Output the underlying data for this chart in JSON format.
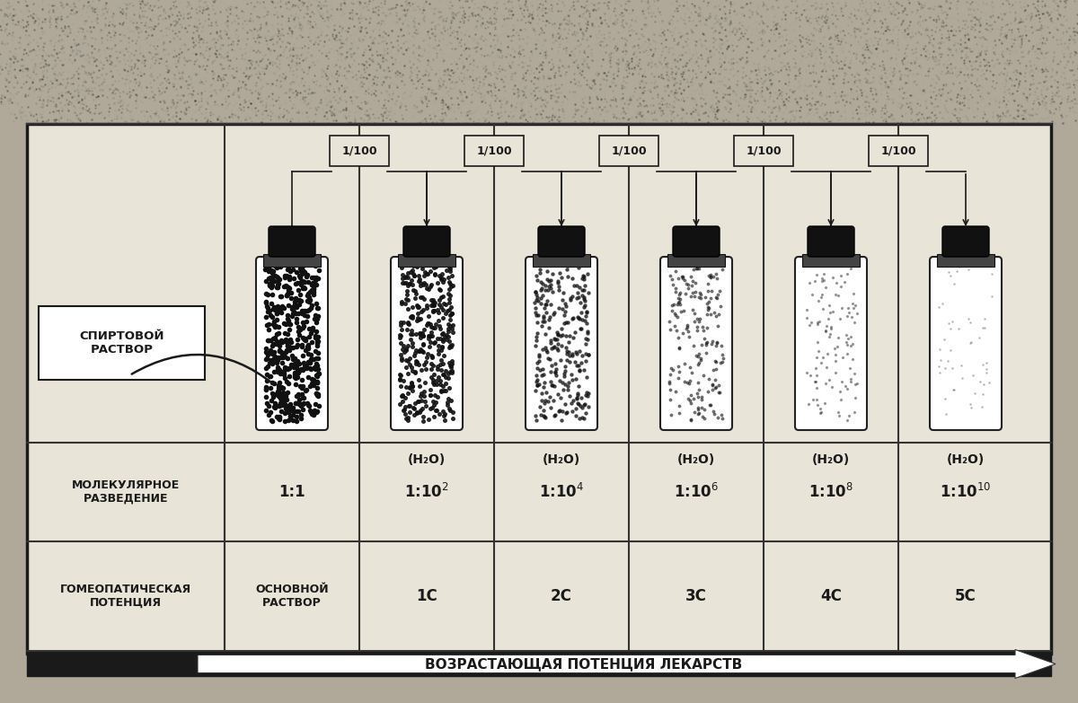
{
  "title": "ВОЗРАСТАЮЩАЯ ПОТЕНЦИЯ ЛЕКАРСТВ",
  "bg_outer": "#b0a898",
  "bg_inner": "#e8e4d8",
  "border_color": "#1a1a1a",
  "grid_color": "#333333",
  "text_color": "#1a1a1a",
  "label_left1": "МОЛЕКУЛЯРНОЕ\nРАЗВЕДЕНИЕ",
  "label_left2": "ГОМЕОПАТИЧЕСКАЯ\nПОТЕНЦИЯ",
  "spirit_label": "СПИРТОВОЙ\nРАСТВОР",
  "dilution_labels": [
    "1/100",
    "1/100",
    "1/100",
    "1/100",
    "1/100"
  ],
  "bottle_densities": [
    1.0,
    0.75,
    0.55,
    0.38,
    0.22,
    0.1
  ],
  "h2o_labels": [
    "",
    "(H₂O)",
    "(H₂O)",
    "(H₂O)",
    "(H₂O)",
    "(H₂O)"
  ],
  "potency_labels": [
    "ОСНОВНОЙ\nРАСТВОР",
    "1С",
    "2С",
    "3С",
    "4С",
    "5С"
  ]
}
